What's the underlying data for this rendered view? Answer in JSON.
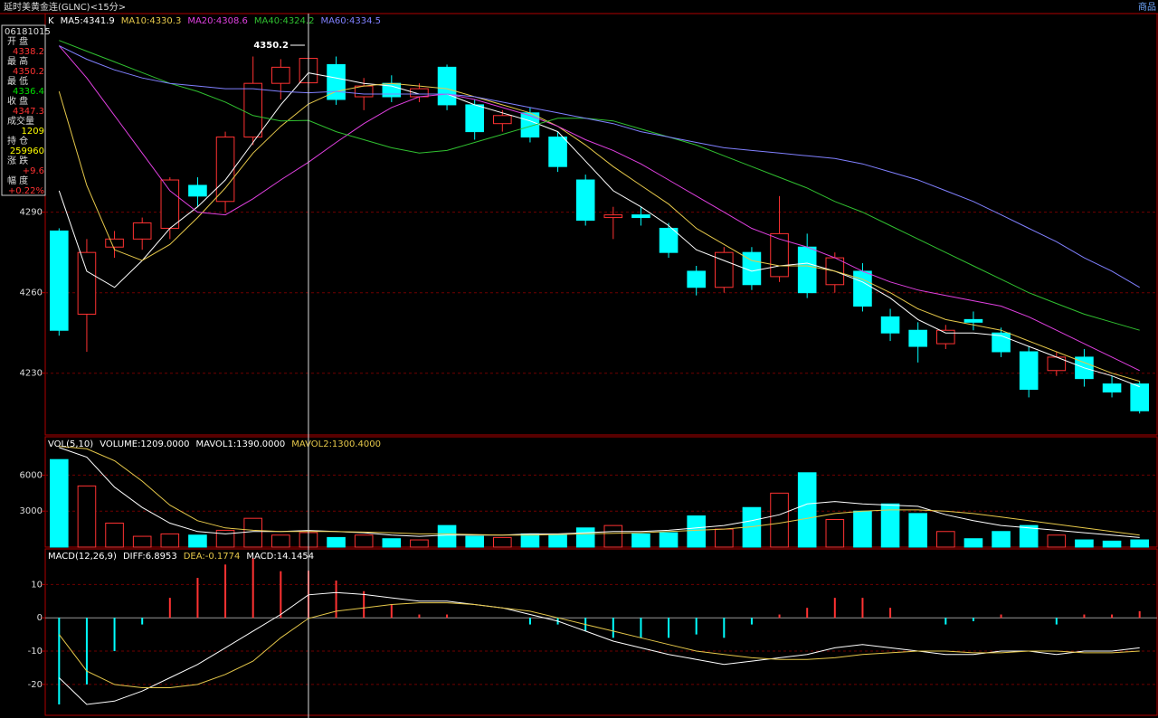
{
  "header": {
    "title": "延时美黄金连(GLNC)<15分>",
    "right": "商品"
  },
  "info": {
    "date": "06181015",
    "items": [
      {
        "label": "开 盘",
        "value": "4338.2",
        "color": "#ff3232"
      },
      {
        "label": "最 高",
        "value": "4350.2",
        "color": "#ff3232"
      },
      {
        "label": "最 低",
        "value": "4336.4",
        "color": "#00e000"
      },
      {
        "label": "收 盘",
        "value": "4347.3",
        "color": "#ff3232"
      },
      {
        "label": "成交量",
        "value": "1209",
        "color": "#ffff00"
      },
      {
        "label": "持 仓",
        "value": "259960",
        "color": "#ffff00"
      },
      {
        "label": "涨 跌",
        "value": "+9.6",
        "color": "#ff3232"
      },
      {
        "label": "幅 度",
        "value": "+0.22%",
        "color": "#ff3232"
      }
    ]
  },
  "chart_data": [
    {
      "type": "candlestick",
      "title": "K",
      "annotation": "4350.2",
      "up_color": "#ff3232",
      "down_color": "#00ffff",
      "grid": true,
      "ylim": [
        4207,
        4364
      ],
      "yticks": [
        4290,
        4260,
        4230
      ],
      "ohlc": [
        [
          4283,
          4284,
          4244,
          4246
        ],
        [
          4252,
          4280,
          4238,
          4275
        ],
        [
          4277,
          4283,
          4273,
          4280
        ],
        [
          4280,
          4288,
          4276,
          4286
        ],
        [
          4284,
          4303,
          4280,
          4302
        ],
        [
          4300,
          4303,
          4292,
          4296
        ],
        [
          4294,
          4320,
          4290,
          4318
        ],
        [
          4318,
          4348,
          4315,
          4338
        ],
        [
          4338,
          4347,
          4332,
          4344
        ],
        [
          4338.2,
          4350.2,
          4336.4,
          4347.3
        ],
        [
          4345,
          4348,
          4330,
          4332
        ],
        [
          4333,
          4340,
          4328,
          4337
        ],
        [
          4338,
          4341,
          4331,
          4333
        ],
        [
          4333,
          4338,
          4331,
          4336
        ],
        [
          4344,
          4345,
          4328,
          4330
        ],
        [
          4330,
          4332,
          4317,
          4320
        ],
        [
          4323,
          4328,
          4320,
          4326
        ],
        [
          4327,
          4329,
          4316,
          4318
        ],
        [
          4318,
          4320,
          4305,
          4307
        ],
        [
          4302,
          4304,
          4285,
          4287
        ],
        [
          4288,
          4292,
          4280,
          4289
        ],
        [
          4289,
          4292,
          4285,
          4288
        ],
        [
          4284,
          4286,
          4273,
          4275
        ],
        [
          4268,
          4270,
          4259,
          4262
        ],
        [
          4262,
          4277,
          4260,
          4275
        ],
        [
          4275,
          4277,
          4261,
          4263
        ],
        [
          4266,
          4296,
          4264,
          4282
        ],
        [
          4277,
          4282,
          4258,
          4260
        ],
        [
          4263,
          4275,
          4260,
          4273
        ],
        [
          4268,
          4271,
          4253,
          4255
        ],
        [
          4251,
          4254,
          4242,
          4245
        ],
        [
          4246,
          4249,
          4234,
          4240
        ],
        [
          4241,
          4248,
          4239,
          4246
        ],
        [
          4250,
          4253,
          4246,
          4249
        ],
        [
          4245,
          4247,
          4236,
          4238
        ],
        [
          4238,
          4240,
          4221,
          4224
        ],
        [
          4231,
          4238,
          4229,
          4236
        ],
        [
          4236,
          4239,
          4225,
          4228
        ],
        [
          4226,
          4229,
          4221,
          4223
        ],
        [
          4226,
          4227,
          4215,
          4216
        ]
      ],
      "series": [
        {
          "name": "MA5:4341.9",
          "color": "#ffffff",
          "values": [
            4298,
            4268,
            4262,
            4272,
            4284,
            4292,
            4302,
            4316,
            4330,
            4341.9,
            4340,
            4338,
            4337,
            4334,
            4334,
            4330,
            4327,
            4324,
            4320,
            4309,
            4298,
            4292,
            4285,
            4276,
            4272,
            4268,
            4270,
            4271,
            4268,
            4264,
            4258,
            4250,
            4245,
            4245,
            4244,
            4240,
            4236,
            4232,
            4229,
            4225
          ]
        },
        {
          "name": "MA10:4330.3",
          "color": "#e6c84a",
          "values": [
            4335,
            4300,
            4276,
            4272,
            4278,
            4288,
            4299,
            4312,
            4322,
            4330.3,
            4335,
            4337,
            4338,
            4337,
            4336,
            4333,
            4330,
            4327,
            4322,
            4315,
            4307,
            4300,
            4293,
            4284,
            4278,
            4272,
            4270,
            4270,
            4268,
            4265,
            4260,
            4254,
            4250,
            4248,
            4246,
            4242,
            4238,
            4234,
            4230,
            4227
          ]
        },
        {
          "name": "MA20:4308.6",
          "color": "#e040e0",
          "values": [
            4352,
            4340,
            4326,
            4312,
            4298,
            4290,
            4289,
            4295,
            4302,
            4308.6,
            4316,
            4323,
            4329,
            4333,
            4334,
            4332,
            4329,
            4326,
            4322,
            4317,
            4313,
            4308,
            4302,
            4296,
            4290,
            4284,
            4280,
            4277,
            4273,
            4268,
            4264,
            4261,
            4259,
            4257,
            4255,
            4251,
            4246,
            4241,
            4236,
            4231
          ]
        },
        {
          "name": "MA40:4324.2",
          "color": "#30c030",
          "values": [
            4354,
            4350,
            4346,
            4342,
            4338,
            4335,
            4331,
            4326,
            4324,
            4324.2,
            4320,
            4317,
            4314,
            4312,
            4313,
            4316,
            4319,
            4322,
            4325,
            4325,
            4324,
            4321,
            4318,
            4315,
            4311,
            4307,
            4303,
            4299,
            4294,
            4290,
            4285,
            4280,
            4275,
            4270,
            4265,
            4260,
            4256,
            4252,
            4249,
            4246
          ]
        },
        {
          "name": "MA60:4334.5",
          "color": "#8080ff",
          "values": [
            4352,
            4347,
            4343,
            4340,
            4338,
            4337,
            4336,
            4336,
            4335,
            4334.5,
            4335,
            4334,
            4334,
            4334,
            4334,
            4333,
            4331,
            4329,
            4327,
            4325,
            4323,
            4320,
            4318,
            4316,
            4314,
            4313,
            4312,
            4311,
            4310,
            4308,
            4305,
            4302,
            4298,
            4294,
            4289,
            4284,
            4279,
            4273,
            4268,
            4262
          ]
        }
      ]
    },
    {
      "type": "bar",
      "title": "VOL(5,10)",
      "name": "VOLUME:1209.0000",
      "up_color": "#ff3232",
      "down_color": "#00ffff",
      "grid": true,
      "ylim": [
        0,
        9200
      ],
      "yticks": [
        6000,
        3000
      ],
      "values": [
        7300,
        5100,
        2000,
        900,
        1100,
        1000,
        1400,
        2400,
        1000,
        1209,
        800,
        1000,
        700,
        600,
        1800,
        900,
        800,
        1100,
        1000,
        1600,
        1800,
        1100,
        1200,
        2600,
        1500,
        3300,
        4500,
        6200,
        2300,
        3000,
        3600,
        2800,
        1300,
        700,
        1300,
        1800,
        1000,
        600,
        500,
        600
      ],
      "series": [
        {
          "name": "MAVOL1:1390.0000",
          "color": "#ffffff",
          "values": [
            8300,
            7500,
            5000,
            3300,
            2000,
            1300,
            1100,
            1300,
            1300,
            1390,
            1300,
            1200,
            1000,
            900,
            1000,
            1000,
            1000,
            1100,
            1100,
            1200,
            1300,
            1300,
            1400,
            1600,
            1800,
            2200,
            2700,
            3600,
            3800,
            3600,
            3500,
            3400,
            2700,
            2200,
            1800,
            1600,
            1400,
            1200,
            1000,
            800
          ]
        },
        {
          "name": "MAVOL2:1300.4000",
          "color": "#e6c84a",
          "values": [
            8400,
            8200,
            7200,
            5500,
            3500,
            2200,
            1600,
            1400,
            1300,
            1300.4,
            1300,
            1250,
            1200,
            1100,
            1100,
            1050,
            1000,
            1000,
            1050,
            1100,
            1150,
            1200,
            1300,
            1400,
            1500,
            1700,
            2000,
            2400,
            2800,
            3000,
            3100,
            3100,
            3000,
            2800,
            2500,
            2200,
            1900,
            1600,
            1300,
            1000
          ]
        }
      ]
    },
    {
      "type": "macd",
      "title": "MACD(12,26,9)",
      "up_color": "#ff3232",
      "down_color": "#00ffff",
      "grid": true,
      "ylim": [
        -29,
        20.7
      ],
      "yticks": [
        10,
        0,
        -10,
        -20
      ],
      "series": [
        {
          "name": "DIFF:6.8953",
          "color": "#ffffff",
          "values": [
            -18,
            -26,
            -25,
            -22,
            -18,
            -14,
            -9,
            -4,
            1,
            6.8953,
            7.6,
            7,
            6,
            5,
            5,
            4,
            3,
            1,
            -1,
            -4,
            -7,
            -9,
            -11,
            -12.5,
            -14,
            -13,
            -12,
            -11,
            -9,
            -8,
            -9,
            -10,
            -11,
            -11,
            -10,
            -10,
            -11,
            -10,
            -10,
            -9
          ]
        },
        {
          "name": "DEA:-0.1774",
          "color": "#e6c84a",
          "values": [
            -5,
            -16,
            -20,
            -21,
            -21,
            -20,
            -17,
            -13,
            -6,
            -0.1774,
            2,
            3,
            4,
            4.5,
            4.5,
            4,
            3,
            2,
            0,
            -2,
            -4,
            -6,
            -8,
            -10,
            -11,
            -12,
            -12.5,
            -12.5,
            -12,
            -11,
            -10.5,
            -10,
            -10,
            -10.5,
            -10.5,
            -10,
            -10,
            -10.5,
            -10.5,
            -10
          ]
        }
      ],
      "histogram": {
        "name": "MACD:14.1454",
        "color": "#ffffff",
        "values": [
          -26,
          -20,
          -10,
          -2,
          6,
          12,
          16,
          18,
          14,
          14.1454,
          11.2,
          8,
          4,
          1,
          1,
          0,
          0,
          -2,
          -2,
          -4,
          -6,
          -6,
          -6,
          -5,
          -6,
          -2,
          1,
          3,
          6,
          6,
          3,
          0,
          -2,
          -1,
          1,
          0,
          -2,
          1,
          1,
          2
        ]
      }
    }
  ]
}
